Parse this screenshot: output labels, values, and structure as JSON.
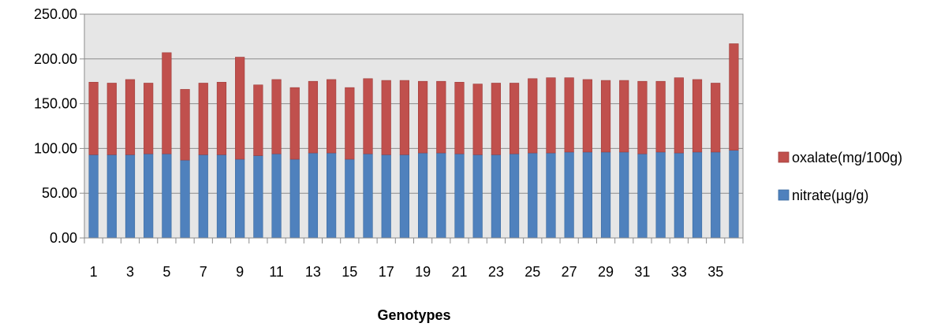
{
  "chart_data": {
    "type": "bar",
    "stacked": true,
    "title": "",
    "xlabel": "Genotypes",
    "ylabel": "",
    "ylim": [
      0,
      250
    ],
    "yticks": [
      "0.00",
      "50.00",
      "100.00",
      "150.00",
      "200.00",
      "250.00"
    ],
    "xtick_labels": [
      "1",
      "3",
      "5",
      "7",
      "9",
      "11",
      "13",
      "15",
      "17",
      "19",
      "21",
      "23",
      "25",
      "27",
      "29",
      "31",
      "33",
      "35"
    ],
    "categories": [
      "1",
      "2",
      "3",
      "4",
      "5",
      "6",
      "7",
      "8",
      "9",
      "10",
      "11",
      "12",
      "13",
      "14",
      "15",
      "16",
      "17",
      "18",
      "19",
      "20",
      "21",
      "22",
      "23",
      "24",
      "25",
      "26",
      "27",
      "28",
      "29",
      "30",
      "31",
      "32",
      "33",
      "34",
      "35",
      "36"
    ],
    "grid": true,
    "legend_position": "right",
    "series": [
      {
        "name": "nitrate(µg/g)",
        "color": "#4f81bd",
        "values": [
          93,
          93,
          93,
          94,
          94,
          87,
          93,
          93,
          88,
          92,
          94,
          88,
          95,
          95,
          88,
          94,
          93,
          93,
          95,
          95,
          94,
          93,
          93,
          94,
          95,
          95,
          96,
          96,
          96,
          96,
          94,
          96,
          95,
          96,
          96,
          98
        ]
      },
      {
        "name": "oxalate(mg/100g)",
        "color": "#c0504d",
        "values": [
          81,
          80,
          84,
          79,
          113,
          79,
          80,
          81,
          114,
          79,
          83,
          80,
          80,
          82,
          80,
          84,
          83,
          83,
          80,
          80,
          80,
          79,
          80,
          79,
          83,
          84,
          83,
          81,
          80,
          80,
          81,
          79,
          84,
          81,
          77,
          119
        ]
      }
    ],
    "legend": [
      {
        "label": "oxalate(mg/100g)",
        "color": "#c0504d"
      },
      {
        "label": "nitrate(µg/g)",
        "color": "#4f81bd"
      }
    ]
  }
}
